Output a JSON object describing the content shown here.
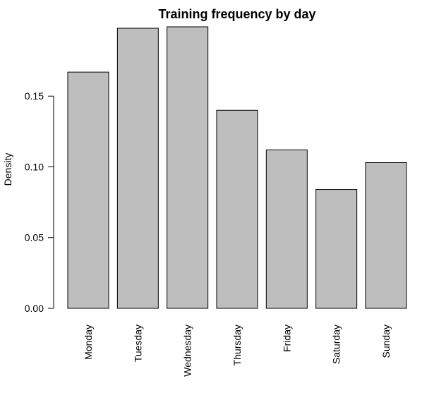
{
  "chart_data": {
    "type": "bar",
    "title": "Training frequency by day",
    "xlabel": "",
    "ylabel": "Density",
    "categories": [
      "Monday",
      "Tuesday",
      "Wednesday",
      "Thursday",
      "Friday",
      "Saturday",
      "Sunday"
    ],
    "values": [
      0.167,
      0.198,
      0.199,
      0.14,
      0.112,
      0.084,
      0.103
    ],
    "yticks": [
      0.0,
      0.05,
      0.1,
      0.15
    ],
    "ytick_labels": [
      "0.00",
      "0.05",
      "0.10",
      "0.15"
    ],
    "ylim": [
      0,
      0.199
    ],
    "colors": {
      "bar_fill": "#bebebe",
      "bar_stroke": "#000000"
    }
  }
}
